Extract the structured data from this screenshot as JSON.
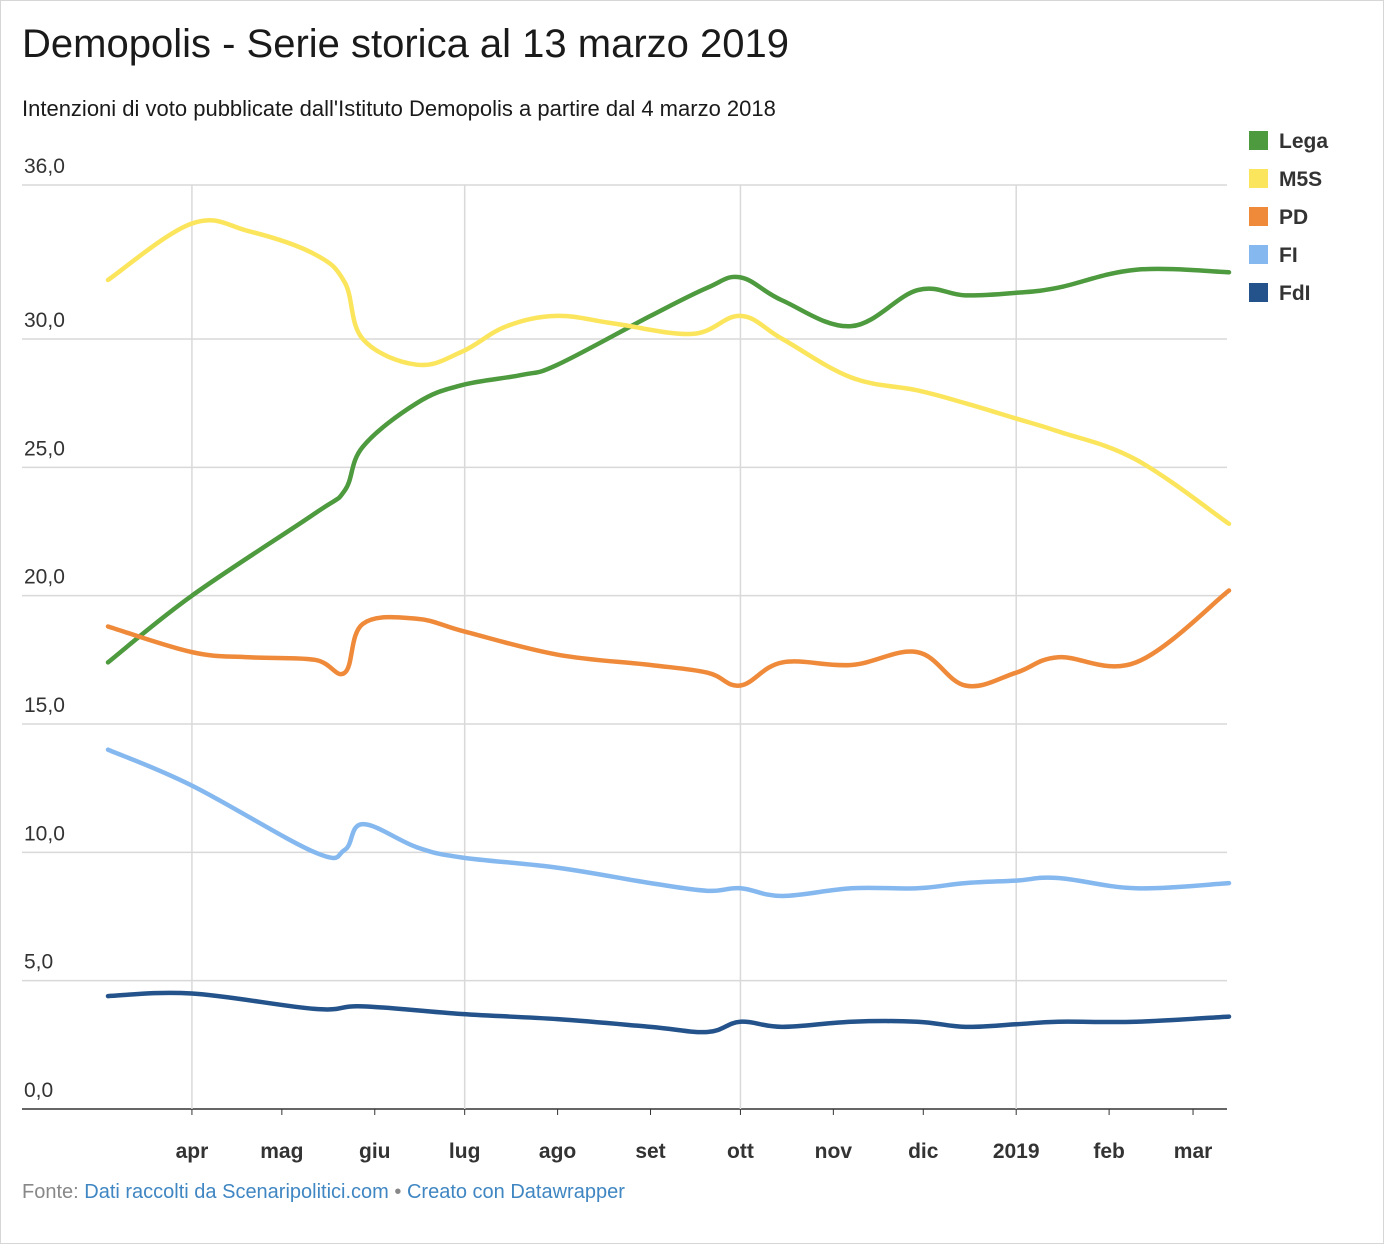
{
  "header": {
    "title": "Demopolis - Serie storica al 13 marzo 2019",
    "subtitle": "Intenzioni di voto pubblicate dall'Istituto Demopolis a partire dal 4 marzo 2018"
  },
  "footer": {
    "prefix": "Fonte:",
    "source_link": "Dati raccolti da Scenaripolitici.com",
    "separator": "•",
    "credit_link": "Creato con Datawrapper"
  },
  "chart_data": {
    "type": "line",
    "title": "Demopolis - Serie storica al 13 marzo 2019",
    "subtitle": "Intenzioni di voto pubblicate dall'Istituto Demopolis a partire dal 4 marzo 2018",
    "x_axis_type": "date",
    "x_domain": [
      "2018-03-04",
      "2019-03-13"
    ],
    "x_ticks": [
      {
        "date": "2018-04-01",
        "label": "apr"
      },
      {
        "date": "2018-05-01",
        "label": "mag"
      },
      {
        "date": "2018-06-01",
        "label": "giu"
      },
      {
        "date": "2018-07-01",
        "label": "lug"
      },
      {
        "date": "2018-08-01",
        "label": "ago"
      },
      {
        "date": "2018-09-01",
        "label": "set"
      },
      {
        "date": "2018-10-01",
        "label": "ott"
      },
      {
        "date": "2018-11-01",
        "label": "nov"
      },
      {
        "date": "2018-12-01",
        "label": "dic"
      },
      {
        "date": "2019-01-01",
        "label": "2019"
      },
      {
        "date": "2019-02-01",
        "label": "feb"
      },
      {
        "date": "2019-03-01",
        "label": "mar"
      }
    ],
    "x_gridlines": [
      "2018-04-01",
      "2018-07-01",
      "2018-10-01",
      "2019-01-01"
    ],
    "ylim": [
      0,
      36
    ],
    "y_ticks": [
      0,
      5,
      10,
      15,
      20,
      25,
      30,
      36
    ],
    "y_tick_labels": [
      "0,0",
      "5,0",
      "10,0",
      "15,0",
      "20,0",
      "25,0",
      "30,0",
      "36,0"
    ],
    "grid": true,
    "legend_position": "top-right",
    "series": [
      {
        "name": "Lega",
        "color": "#4e9a3e",
        "points": [
          [
            "2018-03-04",
            17.4
          ],
          [
            "2018-04-01",
            20.0
          ],
          [
            "2018-05-12",
            23.2
          ],
          [
            "2018-05-22",
            24.1
          ],
          [
            "2018-05-28",
            25.8
          ],
          [
            "2018-06-15",
            27.5
          ],
          [
            "2018-06-30",
            28.2
          ],
          [
            "2018-07-20",
            28.6
          ],
          [
            "2018-08-01",
            29.0
          ],
          [
            "2018-09-01",
            30.9
          ],
          [
            "2018-09-20",
            32.0
          ],
          [
            "2018-10-01",
            32.4
          ],
          [
            "2018-10-15",
            31.5
          ],
          [
            "2018-11-07",
            30.5
          ],
          [
            "2018-11-29",
            31.9
          ],
          [
            "2018-12-15",
            31.7
          ],
          [
            "2019-01-01",
            31.8
          ],
          [
            "2019-01-15",
            32.0
          ],
          [
            "2019-02-10",
            32.7
          ],
          [
            "2019-03-13",
            32.6
          ]
        ]
      },
      {
        "name": "M5S",
        "color": "#fbe55c",
        "points": [
          [
            "2018-03-04",
            32.3
          ],
          [
            "2018-04-01",
            34.5
          ],
          [
            "2018-04-20",
            34.2
          ],
          [
            "2018-05-12",
            33.3
          ],
          [
            "2018-05-22",
            32.2
          ],
          [
            "2018-05-28",
            30.0
          ],
          [
            "2018-06-15",
            29.0
          ],
          [
            "2018-06-30",
            29.5
          ],
          [
            "2018-07-15",
            30.5
          ],
          [
            "2018-08-01",
            30.9
          ],
          [
            "2018-08-20",
            30.6
          ],
          [
            "2018-09-15",
            30.2
          ],
          [
            "2018-10-01",
            30.9
          ],
          [
            "2018-10-15",
            30.0
          ],
          [
            "2018-11-07",
            28.5
          ],
          [
            "2018-11-29",
            28.0
          ],
          [
            "2018-12-15",
            27.5
          ],
          [
            "2019-01-01",
            26.9
          ],
          [
            "2019-01-15",
            26.4
          ],
          [
            "2019-02-10",
            25.3
          ],
          [
            "2019-03-13",
            22.8
          ]
        ]
      },
      {
        "name": "PD",
        "color": "#ef8a3a",
        "points": [
          [
            "2018-03-04",
            18.8
          ],
          [
            "2018-04-01",
            17.8
          ],
          [
            "2018-04-20",
            17.6
          ],
          [
            "2018-05-12",
            17.5
          ],
          [
            "2018-05-22",
            17.0
          ],
          [
            "2018-05-28",
            18.9
          ],
          [
            "2018-06-15",
            19.1
          ],
          [
            "2018-07-01",
            18.6
          ],
          [
            "2018-08-01",
            17.7
          ],
          [
            "2018-09-01",
            17.3
          ],
          [
            "2018-09-20",
            17.0
          ],
          [
            "2018-10-01",
            16.5
          ],
          [
            "2018-10-15",
            17.4
          ],
          [
            "2018-11-07",
            17.3
          ],
          [
            "2018-11-29",
            17.8
          ],
          [
            "2018-12-15",
            16.5
          ],
          [
            "2019-01-01",
            17.0
          ],
          [
            "2019-01-15",
            17.6
          ],
          [
            "2019-02-10",
            17.4
          ],
          [
            "2019-03-13",
            20.2
          ]
        ]
      },
      {
        "name": "FI",
        "color": "#84b8ef",
        "points": [
          [
            "2018-03-04",
            14.0
          ],
          [
            "2018-04-01",
            12.6
          ],
          [
            "2018-05-12",
            10.0
          ],
          [
            "2018-05-22",
            10.1
          ],
          [
            "2018-05-28",
            11.1
          ],
          [
            "2018-06-15",
            10.2
          ],
          [
            "2018-06-30",
            9.8
          ],
          [
            "2018-08-01",
            9.4
          ],
          [
            "2018-09-01",
            8.8
          ],
          [
            "2018-09-20",
            8.5
          ],
          [
            "2018-10-01",
            8.6
          ],
          [
            "2018-10-15",
            8.3
          ],
          [
            "2018-11-07",
            8.6
          ],
          [
            "2018-11-29",
            8.6
          ],
          [
            "2018-12-15",
            8.8
          ],
          [
            "2019-01-01",
            8.9
          ],
          [
            "2019-01-15",
            9.0
          ],
          [
            "2019-02-10",
            8.6
          ],
          [
            "2019-03-13",
            8.8
          ]
        ]
      },
      {
        "name": "FdI",
        "color": "#23538a",
        "points": [
          [
            "2018-03-04",
            4.4
          ],
          [
            "2018-04-01",
            4.5
          ],
          [
            "2018-05-12",
            3.9
          ],
          [
            "2018-05-28",
            4.0
          ],
          [
            "2018-06-30",
            3.7
          ],
          [
            "2018-08-01",
            3.5
          ],
          [
            "2018-09-01",
            3.2
          ],
          [
            "2018-09-20",
            3.0
          ],
          [
            "2018-10-01",
            3.4
          ],
          [
            "2018-10-15",
            3.2
          ],
          [
            "2018-11-07",
            3.4
          ],
          [
            "2018-11-29",
            3.4
          ],
          [
            "2018-12-15",
            3.2
          ],
          [
            "2019-01-01",
            3.3
          ],
          [
            "2019-01-15",
            3.4
          ],
          [
            "2019-02-10",
            3.4
          ],
          [
            "2019-03-13",
            3.6
          ]
        ]
      }
    ]
  }
}
